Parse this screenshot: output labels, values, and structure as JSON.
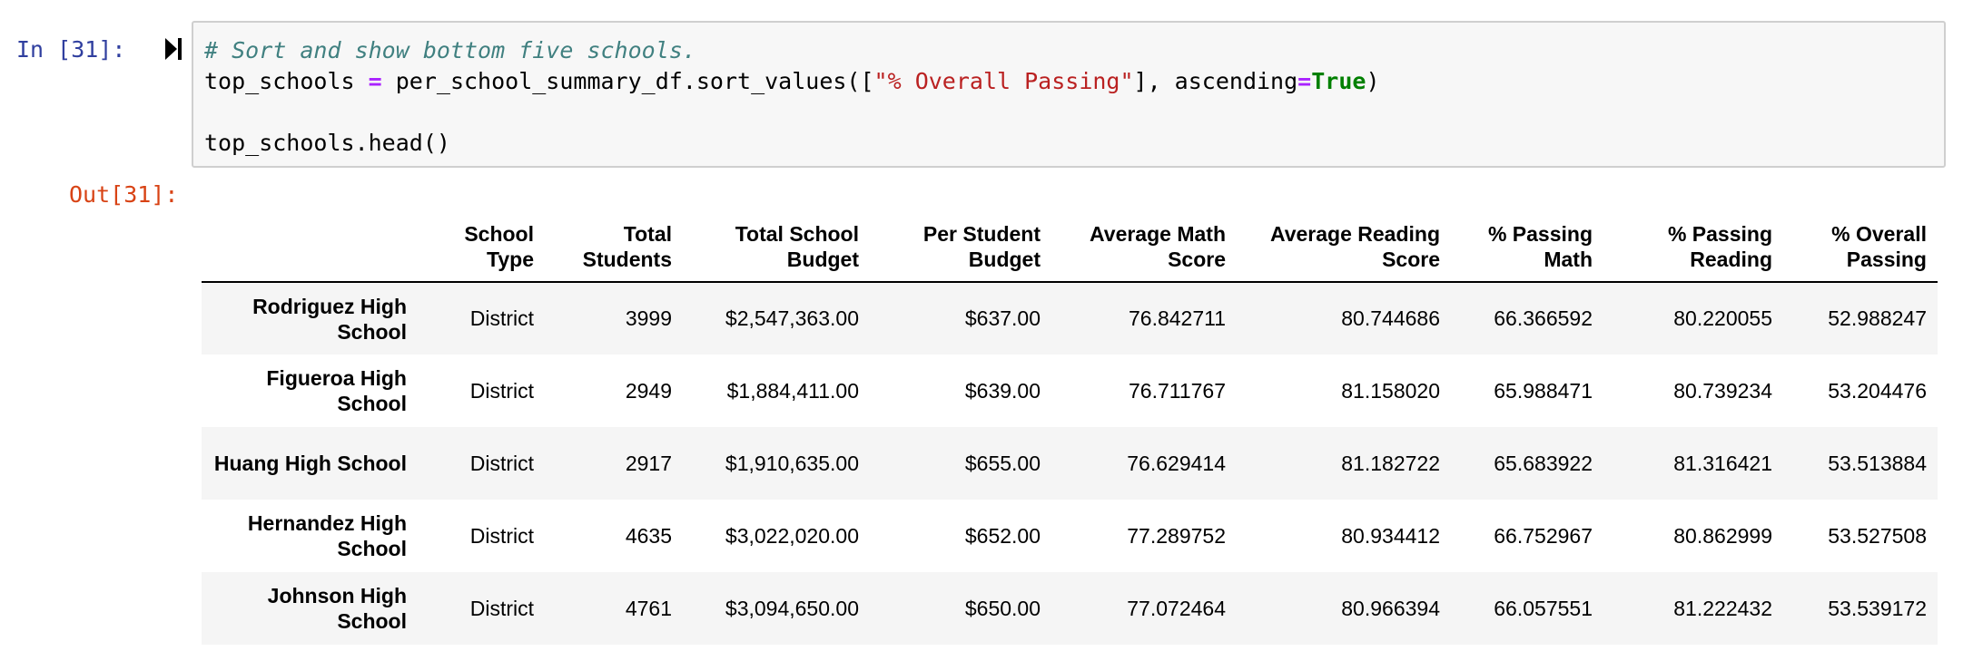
{
  "input_prompt": "In [31]:",
  "output_prompt": "Out[31]:",
  "code": {
    "comment": "# Sort and show bottom five schools.",
    "line2_var": "top_schools ",
    "line2_eq": "=",
    "line2_call": " per_school_summary_df.sort_values([",
    "line2_str": "\"% Overall Passing\"",
    "line2_arg": "], ascending",
    "line2_eq2": "=",
    "line2_true": "True",
    "line2_close": ")",
    "line4": "top_schools.head()"
  },
  "table": {
    "headers": [
      "",
      "School Type",
      "Total Students",
      "Total School Budget",
      "Per Student Budget",
      "Average Math Score",
      "Average Reading Score",
      "% Passing Math",
      "% Passing Reading",
      "% Overall Passing"
    ],
    "rows": [
      {
        "name": "Rodriguez High School",
        "cells": [
          "District",
          "3999",
          "$2,547,363.00",
          "$637.00",
          "76.842711",
          "80.744686",
          "66.366592",
          "80.220055",
          "52.988247"
        ]
      },
      {
        "name": "Figueroa High School",
        "cells": [
          "District",
          "2949",
          "$1,884,411.00",
          "$639.00",
          "76.711767",
          "81.158020",
          "65.988471",
          "80.739234",
          "53.204476"
        ]
      },
      {
        "name": "Huang High School",
        "cells": [
          "District",
          "2917",
          "$1,910,635.00",
          "$655.00",
          "76.629414",
          "81.182722",
          "65.683922",
          "81.316421",
          "53.513884"
        ]
      },
      {
        "name": "Hernandez High School",
        "cells": [
          "District",
          "4635",
          "$3,022,020.00",
          "$652.00",
          "77.289752",
          "80.934412",
          "66.752967",
          "80.862999",
          "53.527508"
        ]
      },
      {
        "name": "Johnson High School",
        "cells": [
          "District",
          "4761",
          "$3,094,650.00",
          "$650.00",
          "77.072464",
          "80.966394",
          "66.057551",
          "81.222432",
          "53.539172"
        ]
      }
    ]
  }
}
